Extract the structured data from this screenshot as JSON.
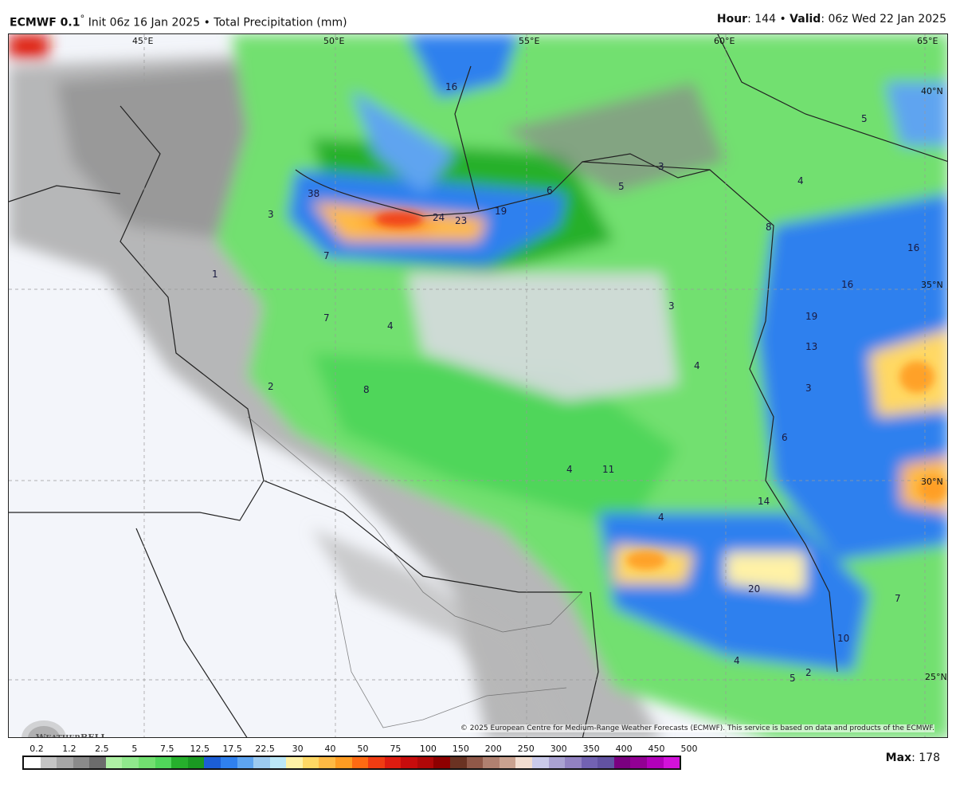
{
  "header": {
    "model": "ECMWF 0.1",
    "degree": "°",
    "init": "Init 06z 16 Jan 2025",
    "separator": "•",
    "product": "Total Precipitation (mm)",
    "hour_label": "Hour",
    "hour": "144",
    "valid_label": "Valid",
    "valid": "06z Wed 22 Jan 2025"
  },
  "map": {
    "longitude_labels": [
      "45°E",
      "50°E",
      "55°E",
      "60°E",
      "65°E"
    ],
    "latitude_labels": [
      "40°N",
      "35°N",
      "30°N",
      "25°N"
    ],
    "value_labels": [
      "38",
      "24",
      "23",
      "19",
      "6",
      "5",
      "3",
      "16",
      "16",
      "16",
      "19",
      "13",
      "4",
      "3",
      "5",
      "8",
      "4",
      "7",
      "4",
      "2",
      "1",
      "3",
      "4",
      "6",
      "11",
      "4",
      "14",
      "20",
      "10",
      "7",
      "4",
      "2",
      "5",
      "3",
      "7",
      "8"
    ],
    "credit": "© 2025 European Centre for Medium-Range Weather Forecasts (ECMWF). This service is based on data and products of the ECMWF.",
    "logo": "WeatherBELL"
  },
  "colorbar": {
    "ticks": [
      "0.2",
      "1.2",
      "2.5",
      "5",
      "7.5",
      "12.5",
      "17.5",
      "22.5",
      "30",
      "40",
      "50",
      "75",
      "100",
      "150",
      "200",
      "250",
      "300",
      "350",
      "400",
      "450",
      "500"
    ],
    "colors": [
      "#ffffff",
      "#c4c4c4",
      "#a6a6a6",
      "#8a8a8a",
      "#6c6c6c",
      "#aef0a4",
      "#90e88c",
      "#72e070",
      "#50d65a",
      "#26b02c",
      "#1a9a22",
      "#1c5ed6",
      "#2f80ee",
      "#5ea4f0",
      "#9ccaf0",
      "#bce8f8",
      "#fff2a6",
      "#ffd864",
      "#ffba44",
      "#ff9c22",
      "#ff6a12",
      "#f03c12",
      "#de1c10",
      "#c80c0c",
      "#b00808",
      "#8e0000",
      "#6a3222",
      "#905848",
      "#b08070",
      "#caa290",
      "#f2ddd0",
      "#cacaea",
      "#aaa2d2",
      "#9282c2",
      "#7262b2",
      "#6252a2",
      "#7a0080",
      "#920094",
      "#b200ba",
      "#d212da"
    ],
    "max_label": "Max",
    "max_value": "178"
  }
}
